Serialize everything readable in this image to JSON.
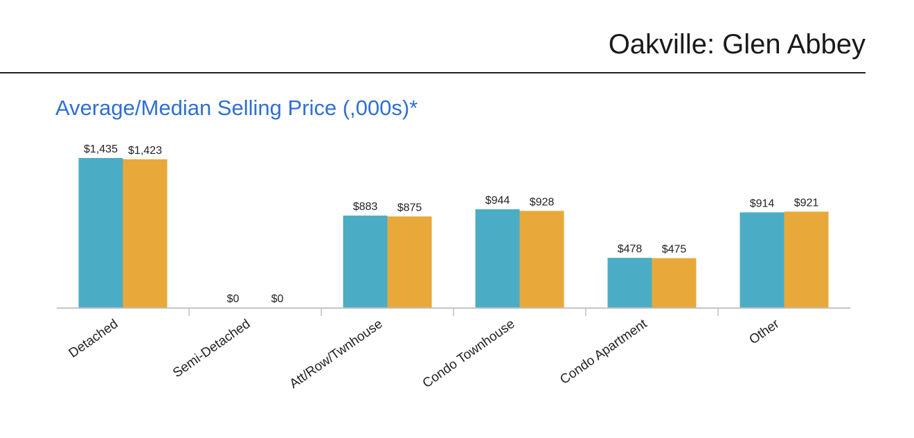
{
  "header": {
    "title": "Oakville: Glen Abbey"
  },
  "colors": {
    "average": "#4bacc6",
    "median": "#e8a93a",
    "title_blue": "#2f6fd0",
    "axis": "#c0c0c0"
  },
  "chart_data": {
    "type": "bar",
    "title": "Average/Median Selling Price (,000s)*",
    "xlabel": "",
    "ylabel": "",
    "ylim": [
      0,
      1435
    ],
    "categories": [
      "Detached",
      "Semi-Detached",
      "Att/Row/Twnhouse",
      "Condo Townhouse",
      "Condo Apartment",
      "Other"
    ],
    "series": [
      {
        "name": "Average",
        "values": [
          1435,
          0,
          883,
          944,
          478,
          914
        ],
        "labels": [
          "$1,435",
          "$0",
          "$883",
          "$944",
          "$478",
          "$914"
        ]
      },
      {
        "name": "Median",
        "values": [
          1423,
          0,
          875,
          928,
          475,
          921
        ],
        "labels": [
          "$1,423",
          "$0",
          "$875",
          "$928",
          "$475",
          "$921"
        ]
      }
    ],
    "grid": false,
    "legend": "none"
  }
}
